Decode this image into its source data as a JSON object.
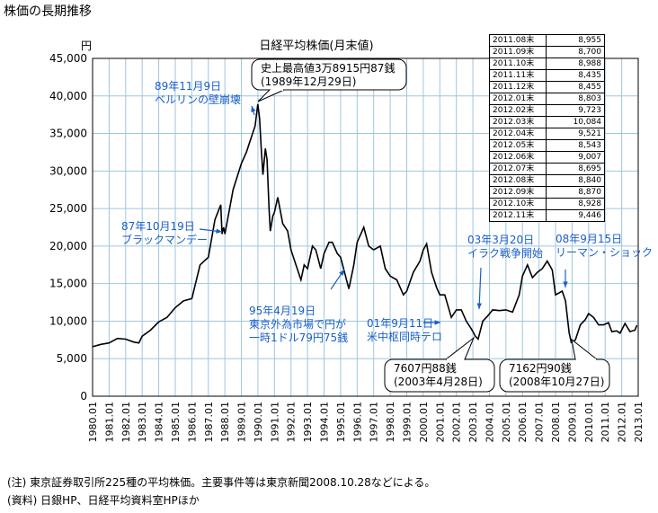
{
  "page_title": "株価の長期推移",
  "notes": [
    "(注) 東京証券取引所225種の平均株価。主要事件等は東京新聞2008.10.28などによる。",
    "(資料) 日銀HP、日経平均資料室HPほか"
  ],
  "monthly_table": [
    {
      "month": "2011.08末",
      "value": "8,955"
    },
    {
      "month": "2011.09末",
      "value": "8,700"
    },
    {
      "month": "2011.10末",
      "value": "8,988"
    },
    {
      "month": "2011.11末",
      "value": "8,435"
    },
    {
      "month": "2011.12末",
      "value": "8,455"
    },
    {
      "month": "2012.01末",
      "value": "8,803"
    },
    {
      "month": "2012.02末",
      "value": "9,723"
    },
    {
      "month": "2012.03末",
      "value": "10,084"
    },
    {
      "month": "2012.04末",
      "value": "9,521"
    },
    {
      "month": "2012.05末",
      "value": "8,543"
    },
    {
      "month": "2012.06末",
      "value": "9,007"
    },
    {
      "month": "2012.07末",
      "value": "8,695"
    },
    {
      "month": "2012.08末",
      "value": "8,840"
    },
    {
      "month": "2012.09末",
      "value": "8,870"
    },
    {
      "month": "2012.10末",
      "value": "8,928"
    },
    {
      "month": "2012.11末",
      "value": "9,446"
    }
  ],
  "colors": {
    "line": "#000000",
    "grid": "#9ec6df",
    "annotation": "#1a5fc8"
  },
  "chart_data": {
    "type": "line",
    "title": "日経平均株価(月末値)",
    "ylabel": "円",
    "xlabel": "",
    "ylim": [
      0,
      45000
    ],
    "yticks": [
      0,
      5000,
      10000,
      15000,
      20000,
      25000,
      30000,
      35000,
      40000,
      45000
    ],
    "ytick_labels": [
      "0",
      "5,000",
      "10,000",
      "15,000",
      "20,000",
      "25,000",
      "30,000",
      "35,000",
      "40,000",
      "45,000"
    ],
    "xlim": [
      1980.0,
      2013.0
    ],
    "xtick_labels": [
      "1980.01",
      "1981.01",
      "1982.01",
      "1983.01",
      "1984.01",
      "1985.01",
      "1986.01",
      "1987.01",
      "1988.01",
      "1989.01",
      "1990.01",
      "1991.01",
      "1992.01",
      "1993.01",
      "1994.01",
      "1995.01",
      "1996.01",
      "1997.01",
      "1998.01",
      "1999.01",
      "2000.01",
      "2001.01",
      "2002.01",
      "2003.01",
      "2004.01",
      "2005.01",
      "2006.01",
      "2007.01",
      "2008.01",
      "2009.01",
      "2010.01",
      "2011.01",
      "2012.01",
      "2013.01"
    ],
    "grid": true,
    "series": [
      {
        "x": [
          1980.0,
          1980.5,
          1981.0,
          1981.5,
          1982.0,
          1982.5,
          1982.8,
          1983.0,
          1983.5,
          1984.0,
          1984.5,
          1985.0,
          1985.5,
          1986.0,
          1986.5,
          1987.0,
          1987.4,
          1987.75,
          1987.83,
          1987.92,
          1988.0,
          1988.5,
          1989.0,
          1989.3,
          1989.6,
          1989.83,
          1989.99,
          1990.1,
          1990.2,
          1990.3,
          1990.45,
          1990.55,
          1990.67,
          1990.75,
          1990.9,
          1991.0,
          1991.2,
          1991.5,
          1991.8,
          1992.0,
          1992.3,
          1992.6,
          1992.8,
          1993.0,
          1993.3,
          1993.5,
          1993.8,
          1994.0,
          1994.3,
          1994.5,
          1994.8,
          1995.0,
          1995.3,
          1995.5,
          1995.8,
          1996.0,
          1996.4,
          1996.7,
          1997.0,
          1997.4,
          1997.7,
          1998.0,
          1998.4,
          1998.8,
          1999.0,
          1999.4,
          1999.8,
          2000.0,
          2000.2,
          2000.5,
          2000.8,
          2001.0,
          2001.3,
          2001.7,
          2002.0,
          2002.3,
          2002.6,
          2002.9,
          2003.15,
          2003.32,
          2003.6,
          2003.9,
          2004.2,
          2004.6,
          2005.0,
          2005.4,
          2005.8,
          2006.0,
          2006.3,
          2006.6,
          2006.9,
          2007.2,
          2007.5,
          2007.8,
          2008.0,
          2008.4,
          2008.6,
          2008.82,
          2008.95,
          2009.2,
          2009.5,
          2009.8,
          2010.0,
          2010.3,
          2010.6,
          2010.9,
          2011.2,
          2011.4,
          2011.7,
          2011.9,
          2012.2,
          2012.5,
          2012.8,
          2012.92
        ],
        "y": [
          6600,
          6900,
          7100,
          7700,
          7600,
          7200,
          7100,
          8000,
          8800,
          9900,
          10500,
          11800,
          12700,
          13000,
          17500,
          18500,
          23500,
          25500,
          21600,
          22500,
          21600,
          27500,
          31000,
          32500,
          34500,
          36000,
          38915,
          37000,
          33000,
          29500,
          33000,
          31500,
          25000,
          22000,
          24000,
          24500,
          26500,
          23000,
          22000,
          19500,
          17500,
          15500,
          17500,
          17000,
          20000,
          19500,
          17000,
          19000,
          20500,
          20500,
          19000,
          18500,
          16000,
          14300,
          17500,
          20500,
          22500,
          20000,
          19500,
          20000,
          17000,
          16000,
          15500,
          13500,
          14000,
          16500,
          18000,
          19500,
          20300,
          16500,
          14500,
          13500,
          13500,
          10500,
          11500,
          11500,
          10000,
          9000,
          8000,
          7607,
          10000,
          10700,
          11500,
          11400,
          11500,
          11200,
          13500,
          16000,
          17500,
          15800,
          16500,
          17000,
          18000,
          16800,
          13500,
          14000,
          12700,
          8500,
          7162,
          7500,
          9500,
          10200,
          11000,
          10500,
          9500,
          9500,
          9800,
          8600,
          8700,
          8400,
          9700,
          8600,
          8800,
          9446
        ]
      }
    ],
    "annotations": [
      {
        "id": "berlin",
        "lines": [
          "89年11月9日",
          "ベルリンの壁崩壊"
        ]
      },
      {
        "id": "black_monday",
        "lines": [
          "87年10月19日",
          "ブラックマンデー"
        ]
      },
      {
        "id": "yen_high",
        "lines": [
          "95年4月19日",
          "東京外為市場で円が",
          "一時1ドル79円75銭"
        ]
      },
      {
        "id": "sept11",
        "lines": [
          "01年9月11日",
          "米中枢同時テロ"
        ]
      },
      {
        "id": "iraq",
        "lines": [
          "03年3月20日",
          "イラク戦争開始"
        ]
      },
      {
        "id": "lehman",
        "lines": [
          "08年9月15日",
          "リーマン・ショック"
        ]
      }
    ],
    "callouts": [
      {
        "id": "peak",
        "lines": [
          "史上最高値3万8915円87銭",
          "(1989年12月29日)"
        ]
      },
      {
        "id": "low2003",
        "lines": [
          "7607円88銭",
          "(2003年4月28日)"
        ]
      },
      {
        "id": "low2008",
        "lines": [
          "7162円90銭",
          "(2008年10月27日)"
        ]
      }
    ]
  }
}
